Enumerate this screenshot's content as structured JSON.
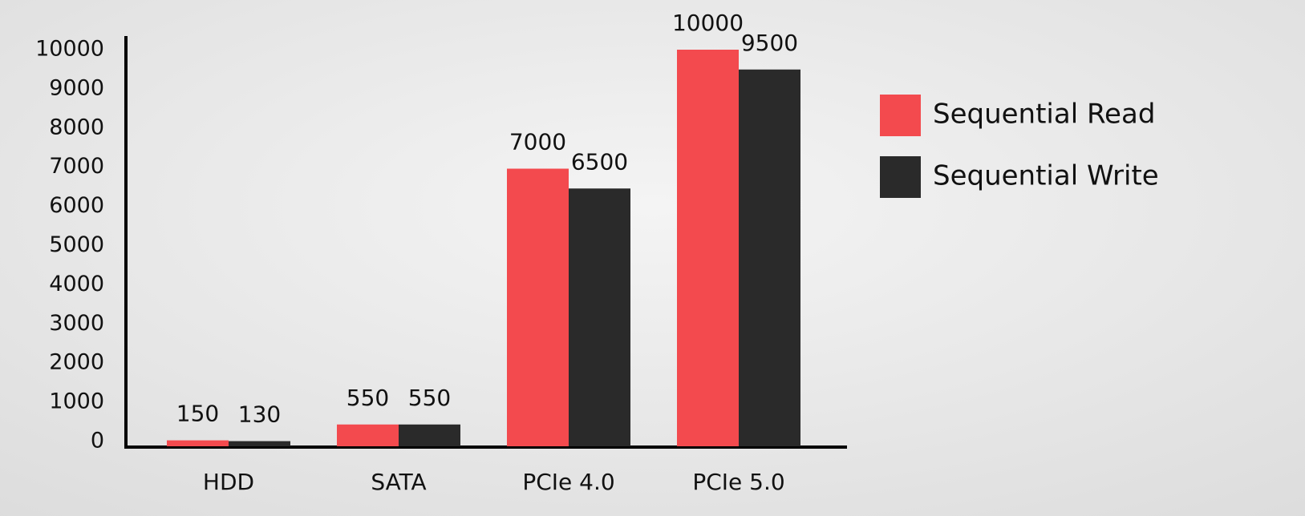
{
  "chart_data": {
    "type": "bar",
    "categories": [
      "HDD",
      "SATA",
      "PCIe 4.0",
      "PCIe 5.0"
    ],
    "series": [
      {
        "name": "Sequential Read",
        "color": "#f34a4e",
        "values": [
          150,
          550,
          7000,
          10000
        ]
      },
      {
        "name": "Sequential Write",
        "color": "#2a2a2a",
        "values": [
          130,
          550,
          6500,
          9500
        ]
      }
    ],
    "ylim": [
      0,
      10000
    ],
    "yticks": [
      0,
      1000,
      2000,
      3000,
      4000,
      5000,
      6000,
      7000,
      8000,
      9000,
      10000
    ],
    "grid": false,
    "legend": "right"
  }
}
